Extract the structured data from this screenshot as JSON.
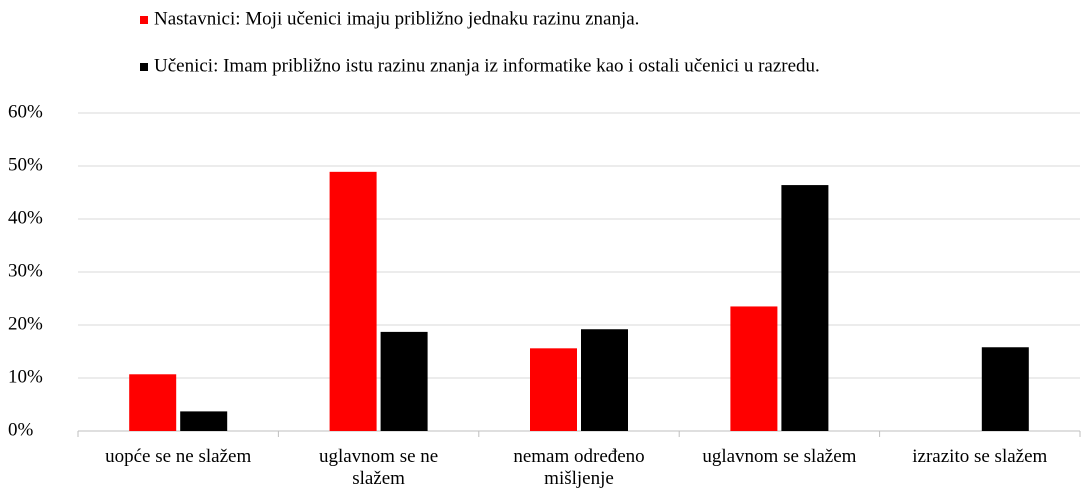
{
  "chart_data": {
    "type": "bar",
    "categories": [
      "uopće se ne slažem",
      "uglavnom se ne\nslažem",
      "nemam određeno\nmišljenje",
      "uglavnom se slažem",
      "izrazito se slažem"
    ],
    "series": [
      {
        "name": "Nastavnici: Moji učenici imaju približno jednaku razinu znanja.",
        "color": "#ff0000",
        "values": [
          10.7,
          48.9,
          15.6,
          23.5,
          0
        ]
      },
      {
        "name": "Učenici: Imam približno istu razinu znanja iz informatike kao i ostali učenici u razredu.",
        "color": "#000000",
        "values": [
          3.7,
          18.7,
          19.2,
          46.4,
          15.8
        ]
      }
    ],
    "ylim": [
      0,
      60
    ],
    "yticks": [
      {
        "value": 0,
        "label": "0%"
      },
      {
        "value": 10,
        "label": "10%"
      },
      {
        "value": 20,
        "label": "20%"
      },
      {
        "value": 30,
        "label": "30%"
      },
      {
        "value": 40,
        "label": "40%"
      },
      {
        "value": 50,
        "label": "50%"
      },
      {
        "value": 60,
        "label": "60%"
      }
    ],
    "grid": true,
    "legend": "top"
  }
}
